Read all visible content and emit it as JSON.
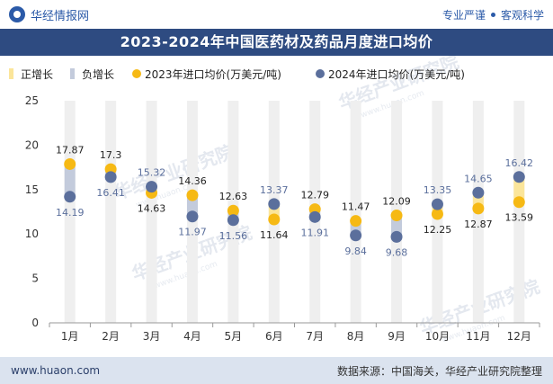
{
  "brand": {
    "logo_text": "华经情报网",
    "slogan_left": "专业严谨",
    "slogan_right": "客观科学"
  },
  "chart_data": {
    "type": "scatter",
    "title": "2023-2024年中国医药材及药品月度进口均价",
    "legend": [
      "正增长",
      "负增长",
      "2023年进口均价(万美元/吨)",
      "2024年进口均价(万美元/吨)"
    ],
    "categories": [
      "1月",
      "2月",
      "3月",
      "4月",
      "5月",
      "6月",
      "7月",
      "8月",
      "9月",
      "10月",
      "11月",
      "12月"
    ],
    "series": [
      {
        "name": "2023年进口均价(万美元/吨)",
        "values": [
          17.87,
          17.3,
          14.63,
          14.36,
          12.63,
          11.64,
          12.79,
          11.47,
          12.09,
          12.25,
          12.87,
          13.59
        ]
      },
      {
        "name": "2024年进口均价(万美元/吨)",
        "values": [
          14.19,
          16.41,
          15.32,
          11.97,
          11.56,
          13.37,
          11.91,
          9.84,
          9.68,
          13.35,
          14.65,
          16.42
        ]
      }
    ],
    "ylim": [
      0,
      25
    ],
    "yticks": [
      0,
      5,
      10,
      15,
      20,
      25
    ],
    "colors": {
      "y2023": "#f6b914",
      "y2024": "#5b6f9c",
      "positive": "#fbe59a",
      "negative": "#c3cbdc",
      "bg_bar": "#efefef",
      "label_2023": "#222222",
      "label_2024": "#5b6f9c"
    }
  },
  "watermarks": [
    "华经产业研究院",
    "www.huaon.com"
  ],
  "footer": {
    "url": "www.huaon.com",
    "source": "数据来源：中国海关，华经产业研究院整理"
  }
}
